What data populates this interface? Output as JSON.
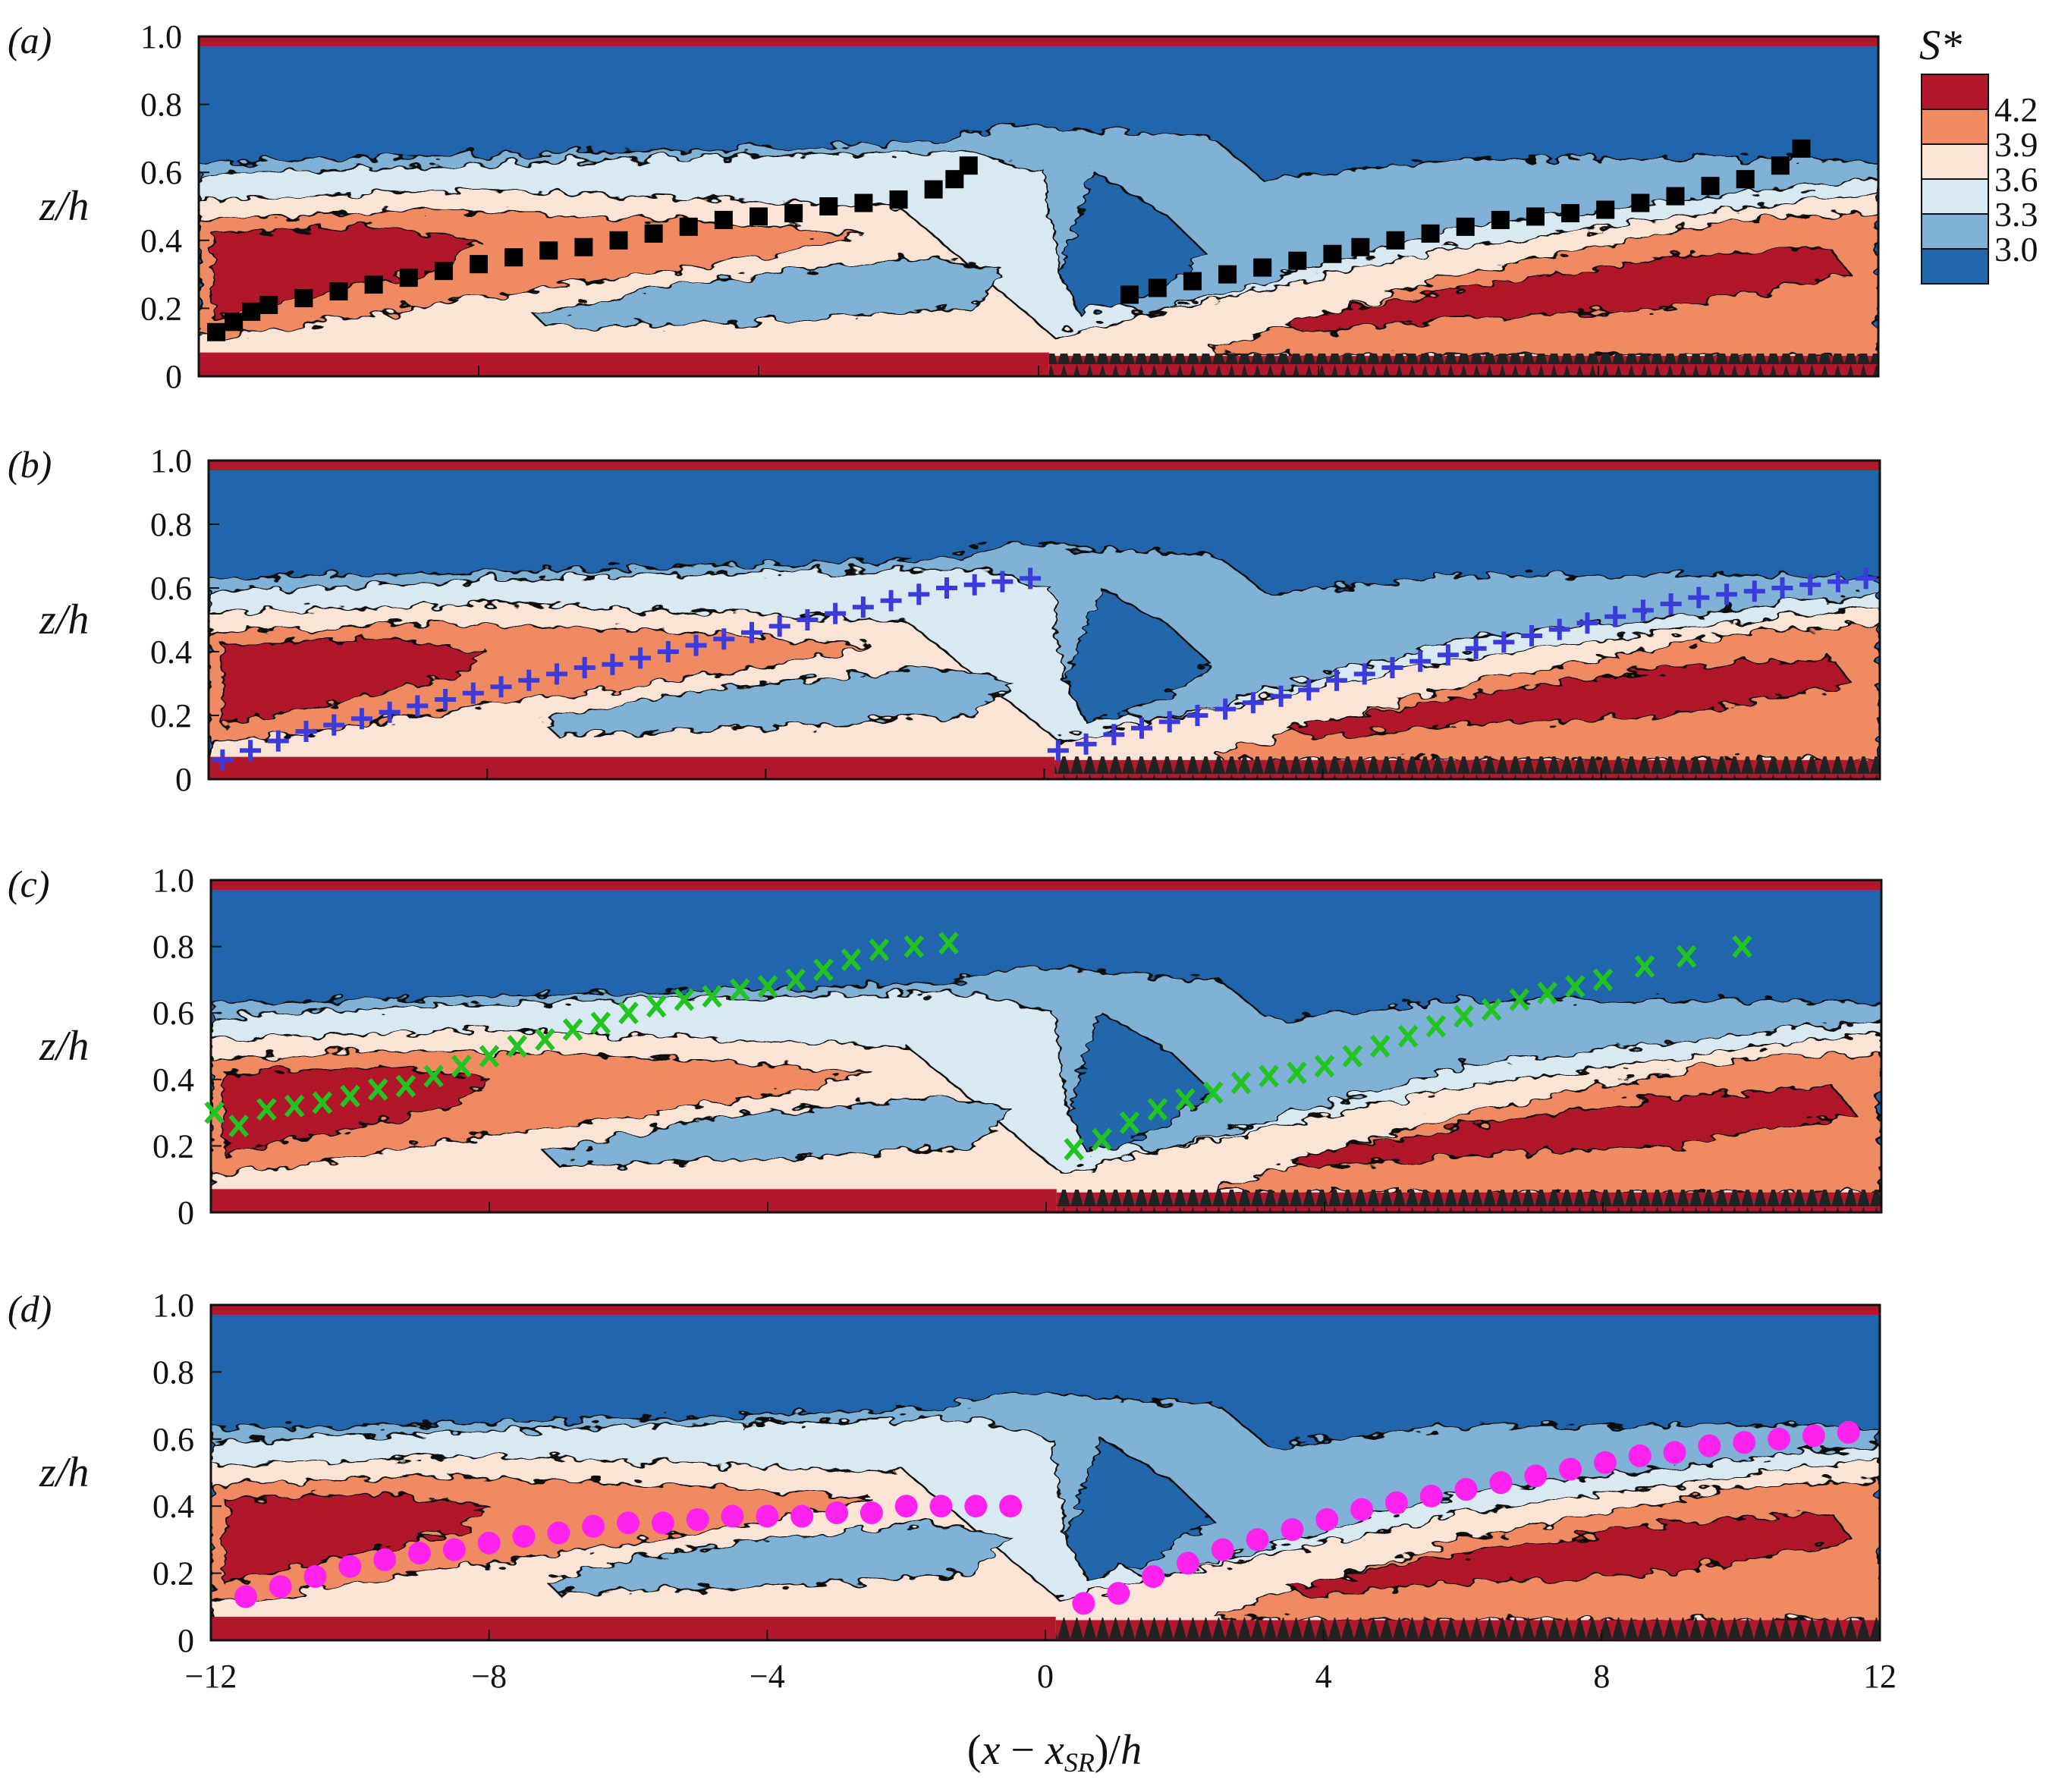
{
  "chart_data": {
    "type": "contour",
    "xlabel": "(x − x_SR)/h",
    "ylabel": "z/h",
    "xlim": [
      -12,
      12
    ],
    "ylim": [
      0,
      1.0
    ],
    "xticks": [
      -12,
      -8,
      -4,
      0,
      4,
      8,
      12
    ],
    "x_tick_labels": [
      "−12",
      "−8",
      "−4",
      "0",
      "4",
      "8",
      "12"
    ],
    "yticks": [
      0,
      0.2,
      0.4,
      0.6,
      0.8,
      1.0
    ],
    "y_tick_labels": [
      "0",
      "0.2",
      "0.4",
      "0.6",
      "0.8",
      "1.0"
    ],
    "colorbar": {
      "title": "S*",
      "levels": [
        {
          "label": "4.2",
          "color": "#b2182b"
        },
        {
          "label": "3.9",
          "color": "#ef8a62"
        },
        {
          "label": "3.6",
          "color": "#fbe4d6"
        },
        {
          "label": "3.3",
          "color": "#d9e9f4"
        },
        {
          "label": "3.0",
          "color": "#7fb2d6"
        },
        {
          "label": "",
          "color": "#2166ac"
        }
      ]
    },
    "panels": [
      {
        "label": "(a)",
        "marker": "square",
        "color": "#000000",
        "series": [
          {
            "x": [
              -11.75,
              -11.5,
              -11.25,
              -11,
              -10.5,
              -10,
              -9.5,
              -9,
              -8.5,
              -8,
              -7.5,
              -7,
              -6.5,
              -6,
              -5.5,
              -5,
              -4.5,
              -4,
              -3.5,
              -3,
              -2.5,
              -2,
              -1.5,
              -1.2,
              -1.0
            ],
            "y": [
              0.13,
              0.16,
              0.19,
              0.21,
              0.23,
              0.25,
              0.27,
              0.29,
              0.31,
              0.33,
              0.35,
              0.37,
              0.38,
              0.4,
              0.42,
              0.44,
              0.46,
              0.47,
              0.48,
              0.5,
              0.51,
              0.52,
              0.55,
              0.58,
              0.62
            ]
          },
          {
            "x": [
              1.3,
              1.7,
              2.2,
              2.7,
              3.2,
              3.7,
              4.2,
              4.6,
              5.1,
              5.6,
              6.1,
              6.6,
              7.1,
              7.6,
              8.1,
              8.6,
              9.1,
              9.6,
              10.1,
              10.6,
              10.9
            ],
            "y": [
              0.24,
              0.26,
              0.28,
              0.3,
              0.32,
              0.34,
              0.36,
              0.38,
              0.4,
              0.42,
              0.44,
              0.46,
              0.47,
              0.48,
              0.49,
              0.51,
              0.53,
              0.56,
              0.58,
              0.62,
              0.67
            ]
          }
        ]
      },
      {
        "label": "(b)",
        "marker": "plus",
        "color": "#3b3bdc",
        "series": [
          {
            "x": [
              -11.8,
              -11.4,
              -11,
              -10.6,
              -10.2,
              -9.8,
              -9.4,
              -9,
              -8.6,
              -8.2,
              -7.8,
              -7.4,
              -7,
              -6.6,
              -6.2,
              -5.8,
              -5.4,
              -5,
              -4.6,
              -4.2,
              -3.8,
              -3.4,
              -3,
              -2.6,
              -2.2,
              -1.8,
              -1.4,
              -1,
              -0.6,
              -0.2
            ],
            "y": [
              0.06,
              0.09,
              0.12,
              0.15,
              0.17,
              0.19,
              0.21,
              0.23,
              0.25,
              0.27,
              0.29,
              0.31,
              0.33,
              0.35,
              0.36,
              0.38,
              0.4,
              0.42,
              0.44,
              0.46,
              0.48,
              0.5,
              0.52,
              0.54,
              0.56,
              0.58,
              0.6,
              0.61,
              0.62,
              0.63
            ]
          },
          {
            "x": [
              0.2,
              0.6,
              1.0,
              1.4,
              1.8,
              2.2,
              2.6,
              3.0,
              3.4,
              3.8,
              4.2,
              4.6,
              5.0,
              5.4,
              5.8,
              6.2,
              6.6,
              7.0,
              7.4,
              7.8,
              8.2,
              8.6,
              9.0,
              9.4,
              9.8,
              10.2,
              10.6,
              11.0,
              11.4,
              11.8
            ],
            "y": [
              0.09,
              0.11,
              0.14,
              0.16,
              0.18,
              0.2,
              0.22,
              0.24,
              0.26,
              0.28,
              0.31,
              0.33,
              0.35,
              0.37,
              0.39,
              0.41,
              0.43,
              0.45,
              0.47,
              0.49,
              0.51,
              0.53,
              0.55,
              0.57,
              0.58,
              0.59,
              0.6,
              0.61,
              0.62,
              0.63
            ]
          }
        ]
      },
      {
        "label": "(c)",
        "marker": "x",
        "color": "#22c422",
        "series": [
          {
            "x": [
              -11.95,
              -11.6,
              -11.2,
              -10.8,
              -10.4,
              -10,
              -9.6,
              -9.2,
              -8.8,
              -8.4,
              -8,
              -7.6,
              -7.2,
              -6.8,
              -6.4,
              -6,
              -5.6,
              -5.2,
              -4.8,
              -4.4,
              -4,
              -3.6,
              -3.2,
              -2.8,
              -2.4,
              -1.9,
              -1.4
            ],
            "y": [
              0.3,
              0.26,
              0.31,
              0.32,
              0.33,
              0.35,
              0.37,
              0.38,
              0.41,
              0.44,
              0.47,
              0.5,
              0.52,
              0.55,
              0.57,
              0.6,
              0.62,
              0.64,
              0.65,
              0.67,
              0.68,
              0.7,
              0.73,
              0.76,
              0.79,
              0.8,
              0.81
            ]
          },
          {
            "x": [
              0.4,
              0.8,
              1.2,
              1.6,
              2.0,
              2.4,
              2.8,
              3.2,
              3.6,
              4.0,
              4.4,
              4.8,
              5.2,
              5.6,
              6.0,
              6.4,
              6.8,
              7.2,
              7.6,
              8.0,
              8.6,
              9.2,
              10.0
            ],
            "y": [
              0.19,
              0.22,
              0.27,
              0.31,
              0.34,
              0.36,
              0.39,
              0.41,
              0.42,
              0.44,
              0.47,
              0.5,
              0.53,
              0.56,
              0.59,
              0.61,
              0.64,
              0.66,
              0.68,
              0.7,
              0.74,
              0.77,
              0.8
            ]
          }
        ]
      },
      {
        "label": "(d)",
        "marker": "circle",
        "color": "#ff22ee",
        "series": [
          {
            "x": [
              -11.5,
              -11,
              -10.5,
              -10,
              -9.5,
              -9,
              -8.5,
              -8,
              -7.5,
              -7,
              -6.5,
              -6,
              -5.5,
              -5,
              -4.5,
              -4,
              -3.5,
              -3,
              -2.5,
              -2,
              -1.5,
              -1,
              -0.5
            ],
            "y": [
              0.13,
              0.16,
              0.19,
              0.22,
              0.24,
              0.26,
              0.27,
              0.29,
              0.31,
              0.32,
              0.34,
              0.35,
              0.35,
              0.36,
              0.37,
              0.37,
              0.37,
              0.38,
              0.38,
              0.4,
              0.4,
              0.4,
              0.4
            ]
          },
          {
            "x": [
              0.55,
              1.05,
              1.55,
              2.05,
              2.55,
              3.05,
              3.55,
              4.05,
              4.55,
              5.05,
              5.55,
              6.05,
              6.55,
              7.05,
              7.55,
              8.05,
              8.55,
              9.05,
              9.55,
              10.05,
              10.55,
              11.05,
              11.55
            ],
            "y": [
              0.11,
              0.14,
              0.19,
              0.23,
              0.27,
              0.3,
              0.33,
              0.36,
              0.39,
              0.41,
              0.43,
              0.45,
              0.47,
              0.49,
              0.51,
              0.53,
              0.55,
              0.56,
              0.58,
              0.59,
              0.6,
              0.61,
              0.62
            ]
          }
        ]
      }
    ]
  }
}
